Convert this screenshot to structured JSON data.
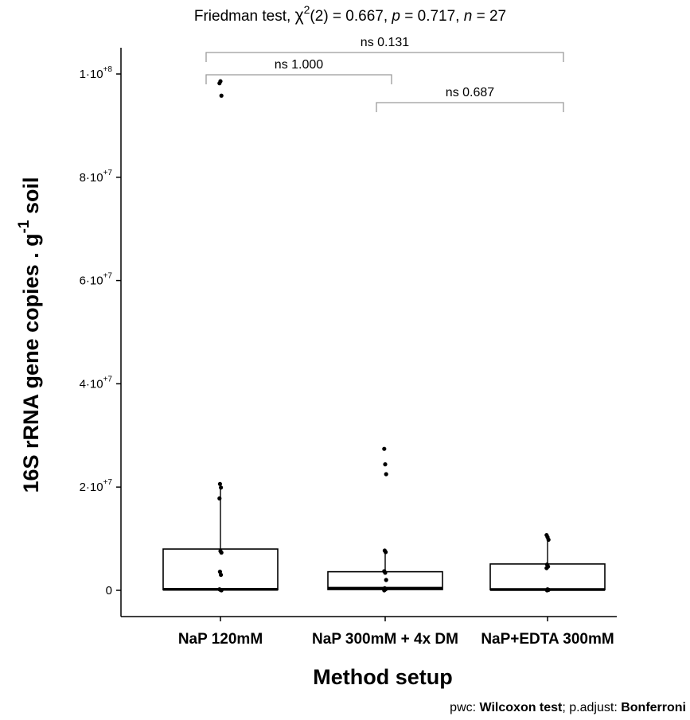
{
  "chart_data": {
    "type": "box",
    "title": {
      "prefix": "Friedman test, ",
      "chi": "χ",
      "chi_sup": "2",
      "stat": "(2) = 0.667, ",
      "p_label": "p",
      "p_value": " = 0.717, ",
      "n_label": "n",
      "n_value": " =  27"
    },
    "xlabel": "Method setup",
    "ylabel_main": "16S rRNA gene copies  . g",
    "ylabel_sup": "-1",
    "ylabel_end": " soil",
    "caption": {
      "pwc_label": "pwc: ",
      "pwc_value": "Wilcoxon test",
      "sep": "; p.adjust: ",
      "adjust_value": "Bonferroni"
    },
    "categories": [
      "NaP 120mM",
      "NaP 300mM + 4x DM",
      "NaP+EDTA 300mM"
    ],
    "ylim": [
      -5000000,
      103000000
    ],
    "yticks": [
      {
        "value": 0,
        "base": "0",
        "sup": ""
      },
      {
        "value": 20000000,
        "base": "2·10",
        "sup": "+7"
      },
      {
        "value": 40000000,
        "base": "4·10",
        "sup": "+7"
      },
      {
        "value": 60000000,
        "base": "6·10",
        "sup": "+7"
      },
      {
        "value": 80000000,
        "base": "8·10",
        "sup": "+7"
      },
      {
        "value": 100000000,
        "base": "1·10",
        "sup": "+8"
      }
    ],
    "boxes": [
      {
        "q1": 100000,
        "median": 200000,
        "q3": 8000000,
        "whisker_low": 0,
        "whisker_high": 19800000
      },
      {
        "q1": 150000,
        "median": 400000,
        "q3": 3600000,
        "whisker_low": 0,
        "whisker_high": 7500000
      },
      {
        "q1": 100000,
        "median": 150000,
        "q3": 5100000,
        "whisker_low": 0,
        "whisker_high": 10500000
      }
    ],
    "points": [
      [
        98200000,
        98600000,
        95800000,
        20600000,
        19900000,
        17800000,
        7600000,
        7300000,
        3600000,
        3000000,
        200000,
        100000,
        0
      ],
      [
        27400000,
        24400000,
        22500000,
        7700000,
        7400000,
        3700000,
        3400000,
        2000000,
        400000,
        200000,
        0
      ],
      [
        10700000,
        10300000,
        9800000,
        5000000,
        4600000,
        4300000,
        200000,
        100000,
        0
      ]
    ],
    "comparisons": [
      {
        "from": 0,
        "to": 1,
        "label": "ns 1.000"
      },
      {
        "from": 1,
        "to": 2,
        "label": "ns 0.687"
      },
      {
        "from": 0,
        "to": 2,
        "label": "ns 0.131"
      }
    ],
    "grid": false,
    "legend": "none"
  }
}
